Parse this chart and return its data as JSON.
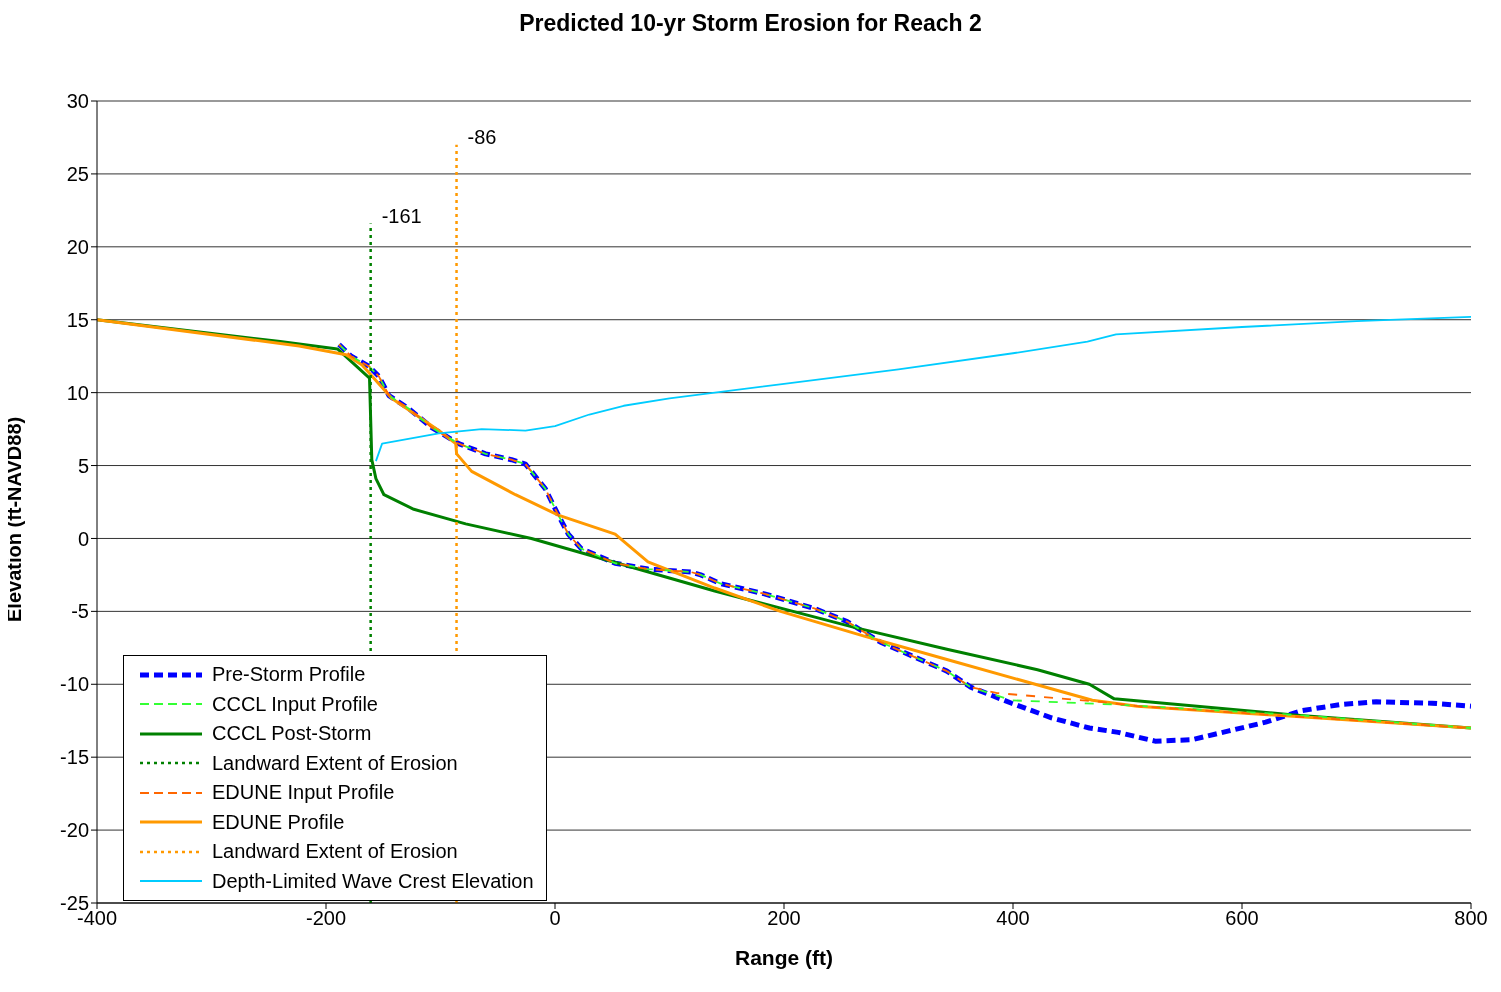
{
  "chart_data": {
    "type": "line",
    "title": "Predicted 10-yr Storm Erosion for Reach 2",
    "xlabel": "Range (ft)",
    "ylabel": "Elevation (ft-NAVD88)",
    "xlim": [
      -400,
      800
    ],
    "xticks": [
      -400,
      -200,
      0,
      200,
      400,
      600,
      800
    ],
    "ylim": [
      -25,
      30
    ],
    "yticks": [
      -25,
      -20,
      -15,
      -10,
      -5,
      0,
      5,
      10,
      15,
      20,
      25,
      30
    ],
    "grid": "y",
    "legend": "bottom left",
    "marker": "none",
    "series": [
      {
        "name": "Pre-Storm Profile",
        "color": "#0000ff",
        "line_style": "dashed",
        "x": [
          -188.6,
          -178,
          -162.4,
          -153.7,
          -145,
          -127.6,
          -107.6,
          -84.1,
          -60.6,
          -38,
          -25.8,
          -8.4,
          2.9,
          11.6,
          22.9,
          52.5,
          81.2,
          118.6,
          127.3,
          144.7,
          183,
          226.5,
          255.2,
          284,
          342.3,
          363.1,
          398.8,
          433.6,
          466.7,
          491.9,
          524.1,
          556.3,
          588.5,
          620.7,
          652.9,
          685.1,
          717.3,
          766,
          800
        ],
        "values": [
          13.3,
          12.5,
          11.8,
          11.1,
          9.8,
          8.9,
          7.6,
          6.5,
          5.8,
          5.4,
          5.1,
          3.4,
          1.6,
          0.3,
          -0.7,
          -1.7,
          -2.1,
          -2.3,
          -2.5,
          -3.1,
          -3.8,
          -4.8,
          -5.7,
          -7.1,
          -9.1,
          -10.2,
          -11.3,
          -12.3,
          -13.0,
          -13.3,
          -13.9,
          -13.8,
          -13.2,
          -12.6,
          -11.8,
          -11.4,
          -11.2,
          -11.3,
          -11.5
        ]
      },
      {
        "name": "CCCL Input Profile",
        "color": "#33ff33",
        "line_style": "dashed",
        "x": [
          -188.6,
          -178,
          -162.4,
          -153.7,
          -145,
          -127.6,
          -107.6,
          -84.1,
          -60.6,
          -38,
          -25.8,
          -8.4,
          2.9,
          11.6,
          22.9,
          52.5,
          81.2,
          118.6,
          127.3,
          144.7,
          183,
          226.5,
          255.2,
          284,
          342.3,
          363.1,
          398.8,
          492,
          645,
          800
        ],
        "values": [
          13.3,
          12.5,
          11.8,
          11.1,
          9.8,
          8.9,
          7.6,
          6.5,
          5.8,
          5.4,
          5.1,
          3.4,
          1.6,
          0.3,
          -0.7,
          -1.7,
          -2.1,
          -2.3,
          -2.5,
          -3.1,
          -3.8,
          -4.8,
          -5.7,
          -7.1,
          -9.1,
          -10.2,
          -11.1,
          -11.4,
          -12.1,
          -13
        ]
      },
      {
        "name": "CCCL Post-Storm",
        "color": "#008000",
        "line_style": "solid",
        "x": [
          -400,
          -240,
          -190,
          -162,
          -160,
          -156.4,
          -149.4,
          -123.3,
          -78,
          -20.6,
          139.5,
          261.3,
          342.3,
          421.4,
          466.7,
          488.4,
          645,
          800
        ],
        "values": [
          15,
          13.5,
          13.0,
          11.0,
          5.4,
          4.1,
          3.0,
          2.0,
          1.0,
          0,
          -3.6,
          -6.1,
          -7.6,
          -9.0,
          -10.0,
          -11.0,
          -12.1,
          -13
        ]
      },
      {
        "name": "Landward Extent of Erosion",
        "color": "#008000",
        "line_style": "dotted",
        "x": [
          -161,
          -161
        ],
        "values": [
          -25,
          21.6
        ]
      },
      {
        "name": "EDUNE Input Profile",
        "color": "#ff6600",
        "line_style": "dashed",
        "x": [
          -188.6,
          -178,
          -162.4,
          -153.7,
          -145,
          -127.6,
          -107.6,
          -84.1,
          -60.6,
          -38,
          -25.8,
          -8.4,
          2.9,
          11.6,
          22.9,
          52.5,
          81.2,
          118.6,
          127.3,
          144.7,
          183,
          226.5,
          255.2,
          284,
          342.3,
          363.1,
          385.8,
          476,
          508.5,
          800
        ],
        "values": [
          13.3,
          12.5,
          11.8,
          11.1,
          9.8,
          8.9,
          7.6,
          6.5,
          5.8,
          5.4,
          5.1,
          3.4,
          1.6,
          0.3,
          -0.7,
          -1.7,
          -2.1,
          -2.3,
          -2.5,
          -3.1,
          -3.8,
          -4.8,
          -5.7,
          -7.1,
          -9.1,
          -10.2,
          -10.6,
          -11.2,
          -11.5,
          -13
        ]
      },
      {
        "name": "EDUNE Profile",
        "color": "#ff9900",
        "line_style": "solid",
        "x": [
          -400,
          -223.4,
          -182.5,
          -168.5,
          -142.4,
          -101.5,
          -86.7,
          -85.9,
          -72.8,
          -34.5,
          2.9,
          52.5,
          81.2,
          139.5,
          197,
          270,
          342.3,
          469.3,
          508.5,
          800
        ],
        "values": [
          15,
          13.2,
          12.6,
          11.9,
          9.6,
          7.4,
          6.5,
          5.8,
          4.6,
          3.0,
          1.6,
          0.3,
          -1.6,
          -3.4,
          -5.0,
          -6.7,
          -8.3,
          -11.1,
          -11.5,
          -13
        ]
      },
      {
        "name": "Landward Extent of Erosion",
        "color": "#ff9900",
        "line_style": "dotted",
        "x": [
          -86,
          -86
        ],
        "values": [
          -25,
          27
        ]
      },
      {
        "name": "Depth-Limited Wave Crest Elevation",
        "color": "#00ccff",
        "line_style": "solid",
        "x": [
          -156.4,
          -151,
          -101.5,
          -64,
          -25.8,
          0,
          30,
          60,
          100,
          200,
          300,
          400,
          465,
          490,
          600,
          700,
          800
        ],
        "values": [
          5.3,
          6.5,
          7.2,
          7.5,
          7.4,
          7.7,
          8.5,
          9.1,
          9.6,
          10.6,
          11.6,
          12.7,
          13.5,
          14.0,
          14.5,
          14.9,
          15.2
        ]
      }
    ],
    "annotations": [
      {
        "text": "-161",
        "x": -161,
        "y": 21.6
      },
      {
        "text": "-86",
        "x": -86,
        "y": 27
      }
    ]
  }
}
